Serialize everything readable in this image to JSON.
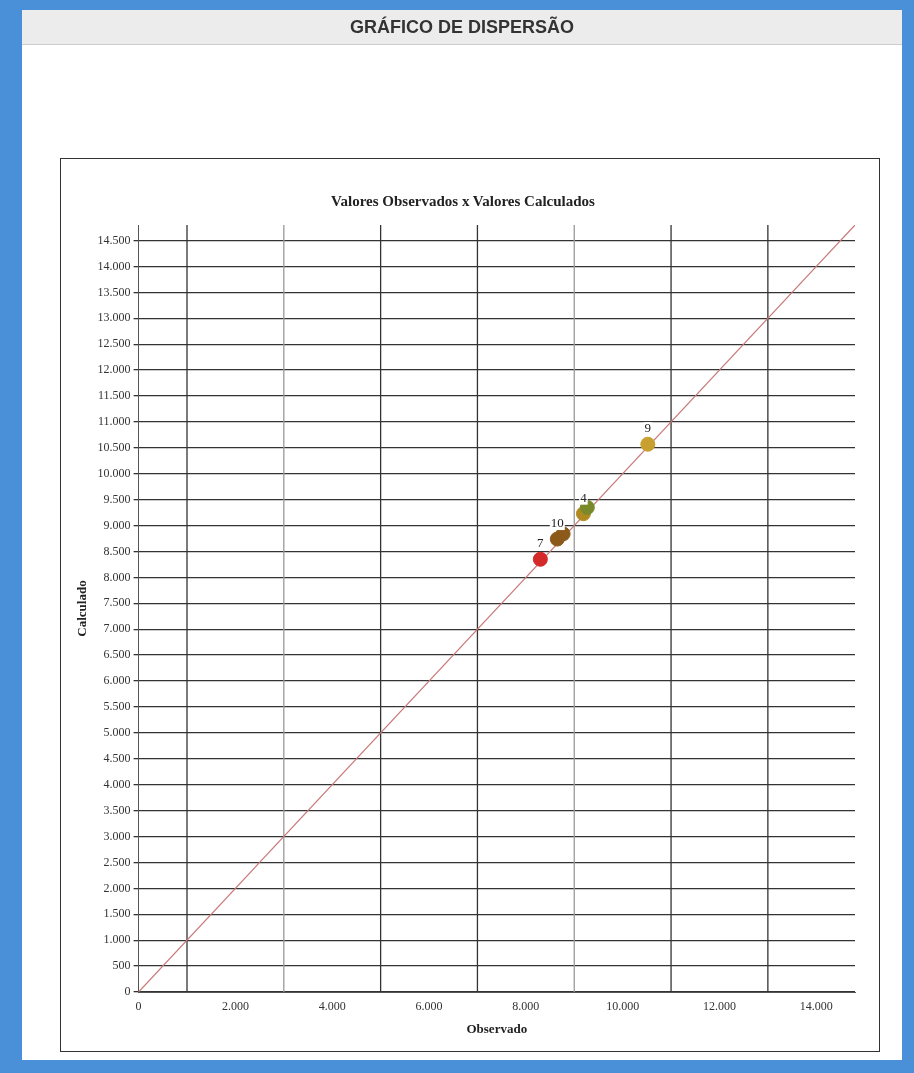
{
  "chart_data": {
    "type": "scatter",
    "title": "GRÁFICO DE DISPERSÃO",
    "subtitle": "Valores Observados x Valores Calculados",
    "xlabel": "Observado",
    "ylabel": "Calculado",
    "xlim": [
      0,
      14800
    ],
    "ylim": [
      0,
      14800
    ],
    "xticks": [
      0,
      {
        "value": 2000,
        "label": "2.000"
      },
      {
        "value": 4000,
        "label": "4.000"
      },
      {
        "value": 6000,
        "label": "6.000"
      },
      {
        "value": 8000,
        "label": "8.000"
      },
      {
        "value": 10000,
        "label": "10.000"
      },
      {
        "value": 12000,
        "label": "12.000"
      },
      {
        "value": 14000,
        "label": "14.000"
      }
    ],
    "yticks": [
      0,
      500,
      {
        "value": 1000,
        "label": "1.000"
      },
      {
        "value": 1500,
        "label": "1.500"
      },
      {
        "value": 2000,
        "label": "2.000"
      },
      {
        "value": 2500,
        "label": "2.500"
      },
      {
        "value": 3000,
        "label": "3.000"
      },
      {
        "value": 3500,
        "label": "3.500"
      },
      {
        "value": 4000,
        "label": "4.000"
      },
      {
        "value": 4500,
        "label": "4.500"
      },
      {
        "value": 5000,
        "label": "5.000"
      },
      {
        "value": 5500,
        "label": "5.500"
      },
      {
        "value": 6000,
        "label": "6.000"
      },
      {
        "value": 6500,
        "label": "6.500"
      },
      {
        "value": 7000,
        "label": "7.000"
      },
      {
        "value": 7500,
        "label": "7.500"
      },
      {
        "value": 8000,
        "label": "8.000"
      },
      {
        "value": 8500,
        "label": "8.500"
      },
      {
        "value": 9000,
        "label": "9.000"
      },
      {
        "value": 9500,
        "label": "9.500"
      },
      {
        "value": 10000,
        "label": "10.000"
      },
      {
        "value": 10500,
        "label": "10.500"
      },
      {
        "value": 11000,
        "label": "11.000"
      },
      {
        "value": 11500,
        "label": "11.500"
      },
      {
        "value": 12000,
        "label": "12.000"
      },
      {
        "value": 12500,
        "label": "12.500"
      },
      {
        "value": 13000,
        "label": "13.000"
      },
      {
        "value": 13500,
        "label": "13.500"
      },
      {
        "value": 14000,
        "label": "14.000"
      },
      {
        "value": 14500,
        "label": "14.500"
      }
    ],
    "grid": "y",
    "marker": "circle",
    "legend": false,
    "ref_lines": [
      {
        "axis": "x",
        "value": 1000,
        "color": "#333333"
      },
      {
        "axis": "x",
        "value": 3000,
        "color": "#999999"
      },
      {
        "axis": "x",
        "value": 5000,
        "color": "#333333"
      },
      {
        "axis": "x",
        "value": 7000,
        "color": "#333333"
      },
      {
        "axis": "x",
        "value": 9000,
        "color": "#999999"
      },
      {
        "axis": "x",
        "value": 11000,
        "color": "#333333"
      },
      {
        "axis": "x",
        "value": 13000,
        "color": "#333333"
      }
    ],
    "series": [
      {
        "type": "line",
        "color": "#c87878",
        "x": [
          0,
          14800
        ],
        "values": [
          0,
          14800
        ],
        "marker": "none"
      },
      {
        "x": [
          8300,
          8650,
          8770,
          9190,
          9270,
          10520
        ],
        "values": [
          8350,
          8740,
          8840,
          9230,
          9350,
          10570
        ],
        "colors": [
          "#d42a2a",
          "#8b5a1a",
          "#8b5a1a",
          "#b08a20",
          "#7a8a2a",
          "#c8a030"
        ]
      }
    ],
    "annotations": [
      {
        "text": "7",
        "x": 8300,
        "y": 8350
      },
      {
        "text": "10",
        "x": 8650,
        "y": 8740
      },
      {
        "text": "4",
        "x": 9190,
        "y": 9230
      },
      {
        "text": "9",
        "x": 10520,
        "y": 10570
      }
    ]
  }
}
